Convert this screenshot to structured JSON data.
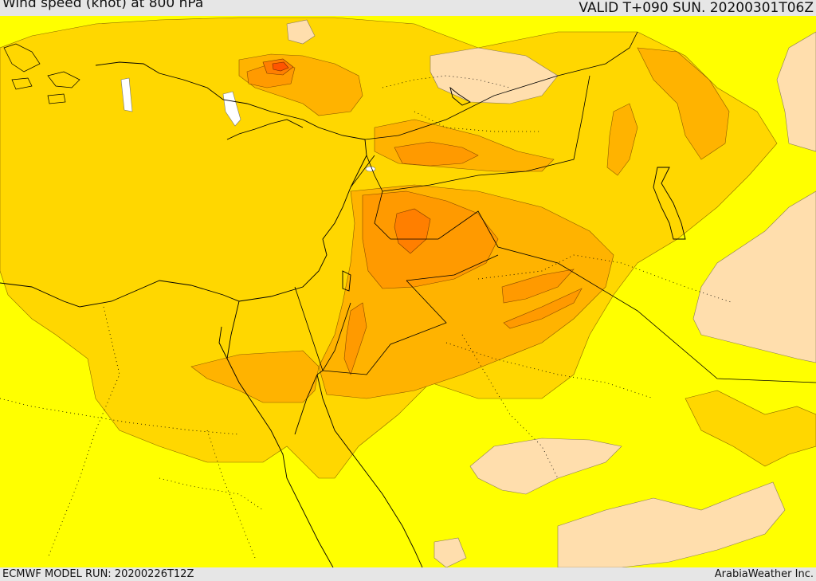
{
  "header": {
    "title": "Wind speed (knot) at 800 hPa",
    "valid": "VALID T+090 SUN. 20200301T06Z"
  },
  "footer": {
    "model_run": "ECMWF MODEL RUN: 20200226T12Z",
    "credit": "ArabiaWeather Inc."
  },
  "colors": {
    "band_white": "#ffffff",
    "band_yellow": "#ffff00",
    "band_gold": "#ffd700",
    "band_orange_light": "#ffb300",
    "band_orange": "#ff9a00",
    "band_orange_dark": "#ff7f00",
    "band_red": "#ff5500",
    "band_tan": "#ffdead"
  }
}
